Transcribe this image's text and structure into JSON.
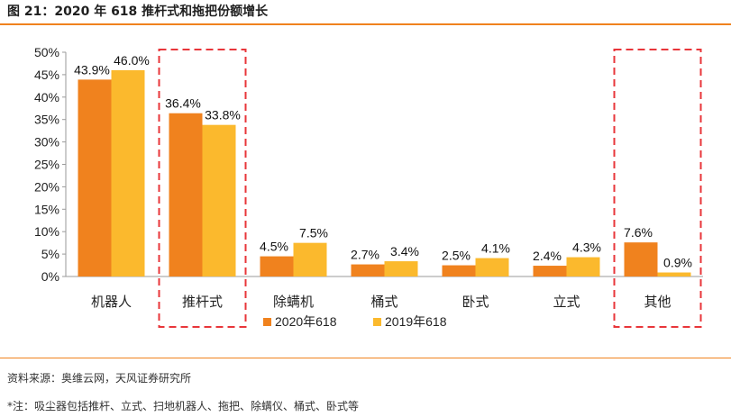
{
  "figure": {
    "title": "图 21：2020 年 618 推杆式和拖把份额增长",
    "source": "资料来源：奥维云网，天风证券研究所",
    "note": "*注：吸尘器包括推杆、立式、扫地机器人、拖把、除螨仪、桶式、卧式等"
  },
  "colors": {
    "series_2020": "#f0821e",
    "series_2019": "#fbb92d",
    "highlight_box": "#e8363a",
    "rule": "#f0821e"
  },
  "chart_data": {
    "type": "bar",
    "categories": [
      "机器人",
      "推杆式",
      "除螨机",
      "桶式",
      "卧式",
      "立式",
      "其他"
    ],
    "series": [
      {
        "name": "2020年618",
        "values": [
          43.9,
          36.4,
          4.5,
          2.7,
          2.5,
          2.4,
          7.6
        ],
        "labels": [
          "43.9%",
          "36.4%",
          "4.5%",
          "2.7%",
          "2.5%",
          "2.4%",
          "7.6%"
        ]
      },
      {
        "name": "2019年618",
        "values": [
          46.0,
          33.8,
          7.5,
          3.4,
          4.1,
          4.3,
          0.9
        ],
        "labels": [
          "46.0%",
          "33.8%",
          "7.5%",
          "3.4%",
          "4.1%",
          "4.3%",
          "0.9%"
        ]
      }
    ],
    "ylim": [
      0,
      50
    ],
    "yticks": [
      0,
      5,
      10,
      15,
      20,
      25,
      30,
      35,
      40,
      45,
      50
    ],
    "ytick_labels": [
      "0%",
      "5%",
      "10%",
      "15%",
      "20%",
      "25%",
      "30%",
      "35%",
      "40%",
      "45%",
      "50%"
    ],
    "highlighted_categories": [
      "推杆式",
      "其他"
    ],
    "legend_position": "bottom",
    "grid": false
  }
}
